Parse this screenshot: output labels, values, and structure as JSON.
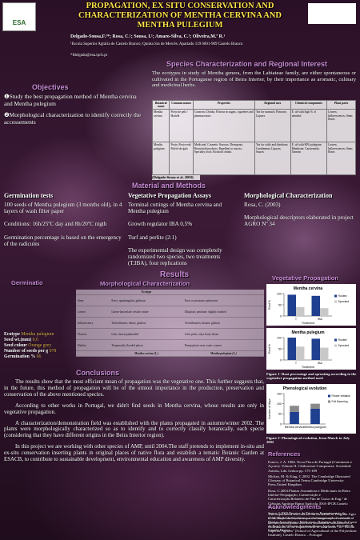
{
  "header": {
    "title_lines": [
      "PROPAGATION, EX SITU CONSERVATION AND",
      "CHARACTERIZATION OF MENTHA CERVINA AND",
      "MENTHA PULEGIUM"
    ],
    "authors": "Delgado-Sousa,F.¹*; Rosa, C.¹; Sousa, I.¹; Amaro-Silva, C.¹; Oliveira,M.ª R.¹",
    "affiliation": "¹Escola Superior Agrária de Castelo Branco; Quinta Sra de Mercês; Apartado 119 6001-909 Castelo Branco",
    "email": "*fdelgado@esa.ipcb.pt",
    "logo": "ESA"
  },
  "objectives": {
    "heading": "Objectives",
    "items": [
      "❶Study the best propagation method of Mentha cervina and Mentha pulegium",
      "❷Morphological characterization to identify correctly the accessements"
    ]
  },
  "species": {
    "heading": "Species Characterization and Regional Interest",
    "text": "The ecotypes in study of Mentha genera, from the Labiateae family, are either spontaneous or cultivated in the Portuguese region of Beira Interior, by their importance as aromatic, culinary and medicinal herbs.",
    "table": {
      "header": [
        "Botanical name",
        "Common names",
        "Properties",
        "Regional uses",
        "Chemical components",
        "Plant parts"
      ],
      "rows": [
        [
          "Mentha cervina",
          "Poejo de pelo / Hortelã",
          "Cosmetic; Drinks; Flavour in sugars, cigarettes and pharmaceutics",
          "Tea for stomach; Flavours; Liquors",
          "E. oil with high % of menthol",
          "Leaves; Inflorescences; Stem; Roots"
        ],
        [
          "Mentha pulegium",
          "Poejo; Poejo-real; Poleió-do-galo",
          "Medicinal; Cosmetic flavours; Detergents; Household products; Repellent to insects; Specialty food; Alcoholic drinks",
          "Tea for colds and diarrhoea; Condiments; Liquors; Sauces",
          "E. oil with 80% pulegone; Menthone; Carotenoids; Tannins",
          "Leaves; Inflorescences; Stem; Roots"
        ]
      ],
      "caption": "(Delgado-Sousa et al, 2003)"
    }
  },
  "methods": {
    "heading": "Material and Methods",
    "germination": {
      "heading": "Germination tests",
      "paragraphs": [
        "100 seeds of Mentha pulegium (3 months old), in 4 layers of wash filter paper",
        "Conditions: 16h/25ºC day and 8h/20ºC nigth",
        "Germination percentage is based on the emergency of the radicules"
      ]
    },
    "vegetative": {
      "heading": "Vegetative Propagation Assays",
      "paragraphs": [
        "Terminal cuttings of Mentha cervina and Mentha pulegium",
        "Growth regulator IBA 0,5%",
        "Turf and perlite (2:1)",
        "The experimental design was completely randomized two species, two treatments (T,IBA), four replications"
      ]
    },
    "morphological": {
      "heading": "Morphological Characterization",
      "paragraphs": [
        "Rosa, C. (2003)",
        "Morphological descriptors elaborated in project AGRO Nº 34"
      ]
    }
  },
  "results": {
    "heading": "Results",
    "germination": {
      "heading": "Germinatio",
      "rows": [
        [
          "Ecotype",
          "Mentha pulegium"
        ],
        [
          "Seed wt.(mm)",
          "0,6"
        ],
        [
          "Seed colour",
          "Orange grey"
        ],
        [
          "Number of seeds per g",
          "978"
        ],
        [
          "Germination %",
          "66"
        ]
      ]
    },
    "morphological": {
      "heading": "Morphological Characterization",
      "header": [
        "",
        "Ecotype",
        ""
      ],
      "rows": [
        [
          "Stem",
          "Erect; quadrangular; glabrous",
          "Erect or prostrate; pubescent"
        ],
        [
          "Leaves",
          "Linear-lanceolate; sessile; entire",
          "Elliptical; petiolate; slightly toothed"
        ],
        [
          "Inflorescence",
          "Verticillasters; dense; globose",
          "Verticillasters; distant; globose"
        ],
        [
          "Flowers",
          "Lilac; bracts palmatifid",
          "Lilac-pink; calyx hairy throat"
        ],
        [
          "Habitat",
          "Temporarily flooded places",
          "Damp places near water courses"
        ]
      ],
      "footer": [
        "Mentha cervina (L.)",
        "Mentha pulegium (L.)"
      ]
    },
    "vegetative": {
      "heading": "Vegetative Propagation",
      "charts": [
        {
          "title": "Mentha cervina",
          "y_label": "Root %",
          "x_label": "Treatment",
          "categories": [
            "T",
            "IBA"
          ],
          "series": [
            {
              "name": "Rooted",
              "color": "#1f3f8f",
              "values": [
                95,
                90
              ]
            },
            {
              "name": "Sprouted",
              "color": "#c8c8c8",
              "values": [
                40,
                35
              ]
            }
          ],
          "ylim": [
            0,
            100
          ],
          "yticks": [
            0,
            50,
            100
          ]
        },
        {
          "title": "Mentha pulegium",
          "y_label": "Root %",
          "x_label": "Treatment",
          "categories": [
            "T",
            "IBA"
          ],
          "series": [
            {
              "name": "Rooted",
              "color": "#1f3f8f",
              "values": [
                100,
                95
              ]
            },
            {
              "name": "Sprouted",
              "color": "#c8c8c8",
              "values": [
                60,
                55
              ]
            }
          ],
          "ylim": [
            0,
            100
          ],
          "yticks": [
            0,
            50,
            100
          ]
        }
      ],
      "caption1": "Figure 1- Root percentage and sprouting according to the vegetative propagation method used",
      "phenology": {
        "title": "Phenological evolution",
        "y_label": "Number of days",
        "categories": [
          "Mentha cervina",
          "Mentha pulegium"
        ],
        "series": [
          {
            "name": "Flower initiation",
            "color": "#1f3f8f",
            "values": [
              60,
              75
            ]
          },
          {
            "name": "Full flowering",
            "color": "#8a8a8a",
            "values": [
              30,
              25
            ]
          }
        ],
        "ylim": [
          0,
          150
        ],
        "yticks": [
          0,
          50,
          100,
          150
        ]
      },
      "caption2": "Figure 2- Phenological evolution, from March to July 2002"
    }
  },
  "conclusions": {
    "heading": "Conclusions",
    "paragraphs": [
      "The results show that the most efficient mean of propagation was the vegetative one. This further suggests that, in the future, this method of propagation will be of the utmost importance in the production, preservation and conservation of the above mentioned species.",
      "According to other works in Portugal, we didn't find seeds in Mentha cervina, whose results are only in vegetative propagation.",
      "A characterization/demonstration field was established with the plants propagated in autumn/winter 2002. The plants were morphologically characterized so as to identify and to correctly classify botanically, each specie (considering that they have different origins in the Beira Interior region).",
      "In this project we are working with other species of AMP, until 2004.The staff pretends to implement in-situ and ex-situ conservation inserting plants in original places of native flora and establish a tematic Botanic Garden at ESACB, to contribute to sustainable development, environmental education and awareness of AMP diversity."
    ]
  },
  "references": {
    "heading": "References",
    "items": [
      "Franco, J. A. 1984. Nova Flora de Portugal (Continente e Açores). Volume II. Clethraceae-Compositae. Sociedade Astória, Lda. Lisboa pp. 175-189",
      "Mickey, M. & King, C.2002. The Cambridge Illustrated Glossary of Botanical Terms.Cambridge University Press.United Kingdom",
      "Rosa, C.2003.Plantas Aromáticas e Medicinais da Beira Interior-Propagação, Conservação e Caracterização.Relatório de Fim de Curso de Eng.ª de Ciências Agrárias-Ramo Agrícola. ESA-IPCB.Castelo Branco",
      "Sousa, I.2003.Ensaios de Técnicas Experimentais de Germinação de Sementes para a Conservação ex situ de Plantas Aromáticas e Medicinais. Relatório de Fim de Curso de Eng.ª de Ciências Agrárias-Ramo Agrícola. ESA-IPCB. Castelo Branco"
    ]
  },
  "acknowledgments": {
    "heading": "Acknowledgments",
    "text": "This experiment was carried out on behalf of Program Agro nº 34 \"Enrichment, the use and management of aromatical and medicinal plants and their sustainable utilization as a contribution to the improvement of rural areas\", in \"Escola Superior Agrária\" (School of Agricultural of the Polytechnic Institute), Castelo Branco – Portugal."
  }
}
